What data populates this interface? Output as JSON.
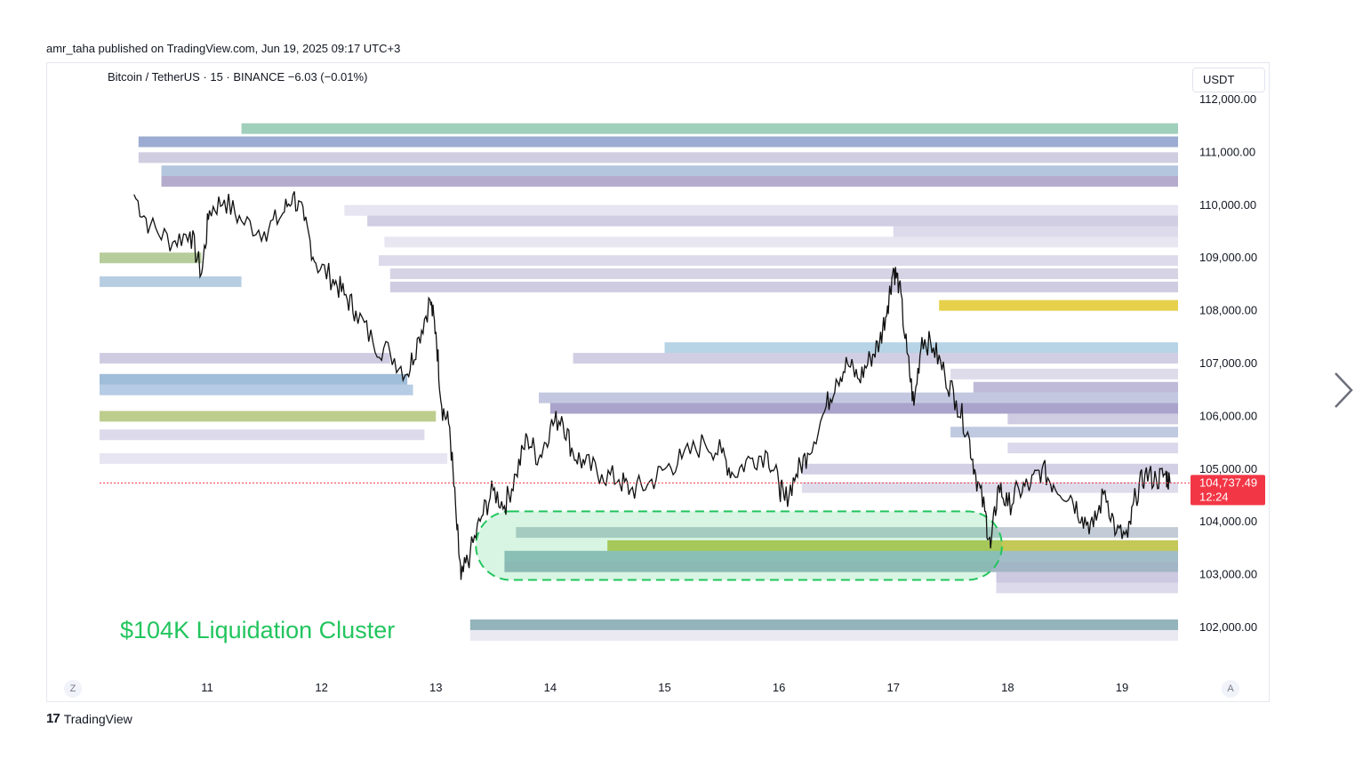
{
  "header": {
    "published": "amr_taha published on TradingView.com, Jun 19, 2025 09:17 UTC+3",
    "symbol_line": "Bitcoin / TetherUS · 15 · BINANCE  −6.03 (−0.01%)",
    "currency": "USDT"
  },
  "annotation": {
    "text": "$104K Liquidation Cluster",
    "color": "#22c55e"
  },
  "price_tag": {
    "price": "104,737.49",
    "countdown": "12:24",
    "color": "#f23645"
  },
  "footer": {
    "logo": "17",
    "brand": "TradingView"
  },
  "controls": {
    "timezone_button": "Z",
    "auto_scale_button": "A"
  },
  "chart_data": {
    "type": "line",
    "symbol": "BTCUSDT",
    "interval": "15",
    "y_axis_labels": [
      "112,000.00",
      "111,000.00",
      "110,000.00",
      "109,000.00",
      "108,000.00",
      "107,000.00",
      "106,000.00",
      "105,000.00",
      "104,000.00",
      "103,000.00",
      "102,000.00"
    ],
    "x_axis_labels": [
      "11",
      "12",
      "13",
      "14",
      "15",
      "16",
      "17",
      "18",
      "19"
    ],
    "ylim": [
      101700,
      112100
    ],
    "xlim": [
      10.3,
      19.5
    ],
    "last_price": 104737.49,
    "price_series": [
      [
        10.36,
        110200
      ],
      [
        10.5,
        109600
      ],
      [
        10.7,
        109300
      ],
      [
        10.85,
        109500
      ],
      [
        10.95,
        108700
      ],
      [
        11.02,
        109900
      ],
      [
        11.15,
        110100
      ],
      [
        11.3,
        109700
      ],
      [
        11.5,
        109500
      ],
      [
        11.65,
        109800
      ],
      [
        11.75,
        110200
      ],
      [
        11.85,
        109700
      ],
      [
        11.95,
        108900
      ],
      [
        12.1,
        108600
      ],
      [
        12.2,
        108300
      ],
      [
        12.3,
        108000
      ],
      [
        12.45,
        107400
      ],
      [
        12.6,
        107200
      ],
      [
        12.75,
        106800
      ],
      [
        12.85,
        107500
      ],
      [
        12.95,
        108200
      ],
      [
        13.0,
        107600
      ],
      [
        13.05,
        106200
      ],
      [
        13.12,
        105800
      ],
      [
        13.18,
        104000
      ],
      [
        13.22,
        102900
      ],
      [
        13.3,
        103400
      ],
      [
        13.4,
        104100
      ],
      [
        13.5,
        104600
      ],
      [
        13.6,
        104300
      ],
      [
        13.7,
        104900
      ],
      [
        13.8,
        105600
      ],
      [
        13.9,
        105200
      ],
      [
        14.0,
        105800
      ],
      [
        14.1,
        106000
      ],
      [
        14.2,
        105300
      ],
      [
        14.3,
        105100
      ],
      [
        14.45,
        104900
      ],
      [
        14.6,
        104800
      ],
      [
        14.7,
        104600
      ],
      [
        14.85,
        104700
      ],
      [
        15.0,
        105000
      ],
      [
        15.15,
        105200
      ],
      [
        15.35,
        105500
      ],
      [
        15.5,
        105300
      ],
      [
        15.6,
        104900
      ],
      [
        15.75,
        105200
      ],
      [
        15.9,
        105300
      ],
      [
        16.0,
        104700
      ],
      [
        16.05,
        104400
      ],
      [
        16.15,
        104900
      ],
      [
        16.25,
        105300
      ],
      [
        16.4,
        106100
      ],
      [
        16.5,
        106700
      ],
      [
        16.6,
        107000
      ],
      [
        16.7,
        106700
      ],
      [
        16.8,
        107100
      ],
      [
        16.88,
        107400
      ],
      [
        16.95,
        108100
      ],
      [
        17.0,
        108800
      ],
      [
        17.05,
        108500
      ],
      [
        17.12,
        107200
      ],
      [
        17.18,
        106200
      ],
      [
        17.25,
        107500
      ],
      [
        17.35,
        107300
      ],
      [
        17.45,
        106800
      ],
      [
        17.55,
        106300
      ],
      [
        17.65,
        105700
      ],
      [
        17.72,
        104900
      ],
      [
        17.8,
        104200
      ],
      [
        17.85,
        103500
      ],
      [
        17.92,
        104700
      ],
      [
        18.0,
        104300
      ],
      [
        18.1,
        104600
      ],
      [
        18.2,
        104700
      ],
      [
        18.3,
        105000
      ],
      [
        18.4,
        104700
      ],
      [
        18.55,
        104500
      ],
      [
        18.65,
        104100
      ],
      [
        18.75,
        103900
      ],
      [
        18.85,
        104600
      ],
      [
        18.95,
        103800
      ],
      [
        19.05,
        103700
      ],
      [
        19.12,
        104500
      ],
      [
        19.2,
        104900
      ],
      [
        19.3,
        104800
      ],
      [
        19.38,
        104900
      ],
      [
        19.42,
        104737
      ]
    ],
    "liquidation_levels": [
      {
        "price": 111450,
        "from": 11.3,
        "color": "#8fc7b0"
      },
      {
        "price": 111200,
        "from": 10.4,
        "color": "#8b9cc9"
      },
      {
        "price": 110900,
        "from": 10.4,
        "color": "#c9c4dc"
      },
      {
        "price": 110650,
        "from": 10.6,
        "color": "#a7bcd8"
      },
      {
        "price": 110450,
        "from": 10.6,
        "color": "#a89dc4"
      },
      {
        "price": 109900,
        "from": 12.2,
        "color": "#e2e0ee"
      },
      {
        "price": 109700,
        "from": 12.4,
        "color": "#c9c6de"
      },
      {
        "price": 109500,
        "from": 17.0,
        "color": "#d6d3e7"
      },
      {
        "price": 109300,
        "from": 12.55,
        "color": "#e4e2ef"
      },
      {
        "price": 108950,
        "from": 12.5,
        "color": "#d7d5e8"
      },
      {
        "price": 108700,
        "from": 12.6,
        "color": "#cfcbe1"
      },
      {
        "price": 108450,
        "from": 12.6,
        "color": "#c7c3dd"
      },
      {
        "price": 108100,
        "from": 17.4,
        "color": "#e3c92c"
      },
      {
        "price": 107300,
        "from": 15.0,
        "color": "#a9cde0"
      },
      {
        "price": 107100,
        "from": 14.2,
        "color": "#c9c5de"
      },
      {
        "price": 106800,
        "from": 17.5,
        "color": "#d8d6e8"
      },
      {
        "price": 106550,
        "from": 17.7,
        "color": "#b4aed0"
      },
      {
        "price": 106350,
        "from": 13.9,
        "color": "#b8bedb"
      },
      {
        "price": 106150,
        "from": 14.0,
        "color": "#9b93c2"
      },
      {
        "price": 105950,
        "from": 18.0,
        "color": "#c7c3dd"
      },
      {
        "price": 105700,
        "from": 17.5,
        "color": "#b4bfdb"
      },
      {
        "price": 105400,
        "from": 18.0,
        "color": "#d3d1e6"
      },
      {
        "price": 105000,
        "from": 16.2,
        "color": "#cbc7e0"
      },
      {
        "price": 104650,
        "from": 16.2,
        "color": "#d8d6e8"
      },
      {
        "price": 103800,
        "from": 13.7,
        "color": "#b9c3cf"
      },
      {
        "price": 103550,
        "from": 14.5,
        "color": "#b9be3a"
      },
      {
        "price": 103350,
        "from": 13.6,
        "color": "#91b3be"
      },
      {
        "price": 103150,
        "from": 13.6,
        "color": "#93a9bd"
      },
      {
        "price": 102950,
        "from": 17.9,
        "color": "#c3c0dc"
      },
      {
        "price": 102750,
        "from": 17.9,
        "color": "#d6d4e7"
      },
      {
        "price": 102050,
        "from": 13.3,
        "color": "#7fa7ae"
      },
      {
        "price": 101850,
        "from": 13.3,
        "color": "#e6e5f0"
      }
    ],
    "left_levels": [
      {
        "price": 109000,
        "to": 10.95,
        "color": "#a9c48a"
      },
      {
        "price": 108550,
        "to": 11.3,
        "color": "#aac6dd"
      },
      {
        "price": 107100,
        "to": 12.6,
        "color": "#c7c3dd"
      },
      {
        "price": 106700,
        "to": 12.75,
        "color": "#8fb1d2"
      },
      {
        "price": 106500,
        "to": 12.8,
        "color": "#a9c3df"
      },
      {
        "price": 106000,
        "to": 13.0,
        "color": "#b2c47a"
      },
      {
        "price": 105650,
        "to": 12.9,
        "color": "#d7d5e8"
      },
      {
        "price": 105200,
        "to": 13.1,
        "color": "#e2e0ee"
      }
    ],
    "highlight_cluster": {
      "price_from": 102900,
      "price_to": 104200,
      "x_from": 13.35,
      "x_to": 17.95,
      "color": "#22c55e"
    }
  }
}
